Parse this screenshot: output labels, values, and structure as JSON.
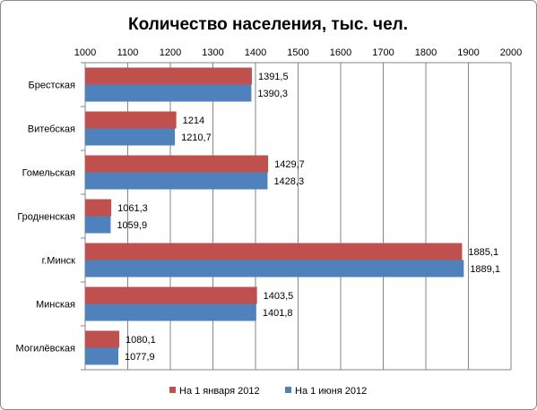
{
  "chart_data": {
    "type": "bar",
    "orientation": "horizontal",
    "title": "Количество населения, тыс. чел.",
    "xlabel": "",
    "ylabel": "",
    "xlim": [
      1000,
      2000
    ],
    "x_ticks": [
      "1000",
      "1100",
      "1200",
      "1300",
      "1400",
      "1500",
      "1600",
      "1700",
      "1800",
      "1900",
      "2000"
    ],
    "x_axis_position": "top",
    "grid": true,
    "legend_position": "bottom",
    "categories": [
      "Брестская",
      "Витебская",
      "Гомельская",
      "Гродненская",
      "г.Минск",
      "Минская",
      "Могилёвская"
    ],
    "series": [
      {
        "name": "На 1 января 2012",
        "color": "#c0504d",
        "values": [
          1391.5,
          1214,
          1429.7,
          1061.3,
          1885.1,
          1403.5,
          1080.1
        ],
        "labels": [
          "1391,5",
          "1214",
          "1429,7",
          "1061,3",
          "1885,1",
          "1403,5",
          "1080,1"
        ]
      },
      {
        "name": "На 1 июня 2012",
        "color": "#4f81bd",
        "values": [
          1390.3,
          1210.7,
          1428.3,
          1059.9,
          1889.1,
          1401.8,
          1077.9
        ],
        "labels": [
          "1390,3",
          "1210,7",
          "1428,3",
          "1059,9",
          "1889,1",
          "1401,8",
          "1077,9"
        ]
      }
    ]
  }
}
